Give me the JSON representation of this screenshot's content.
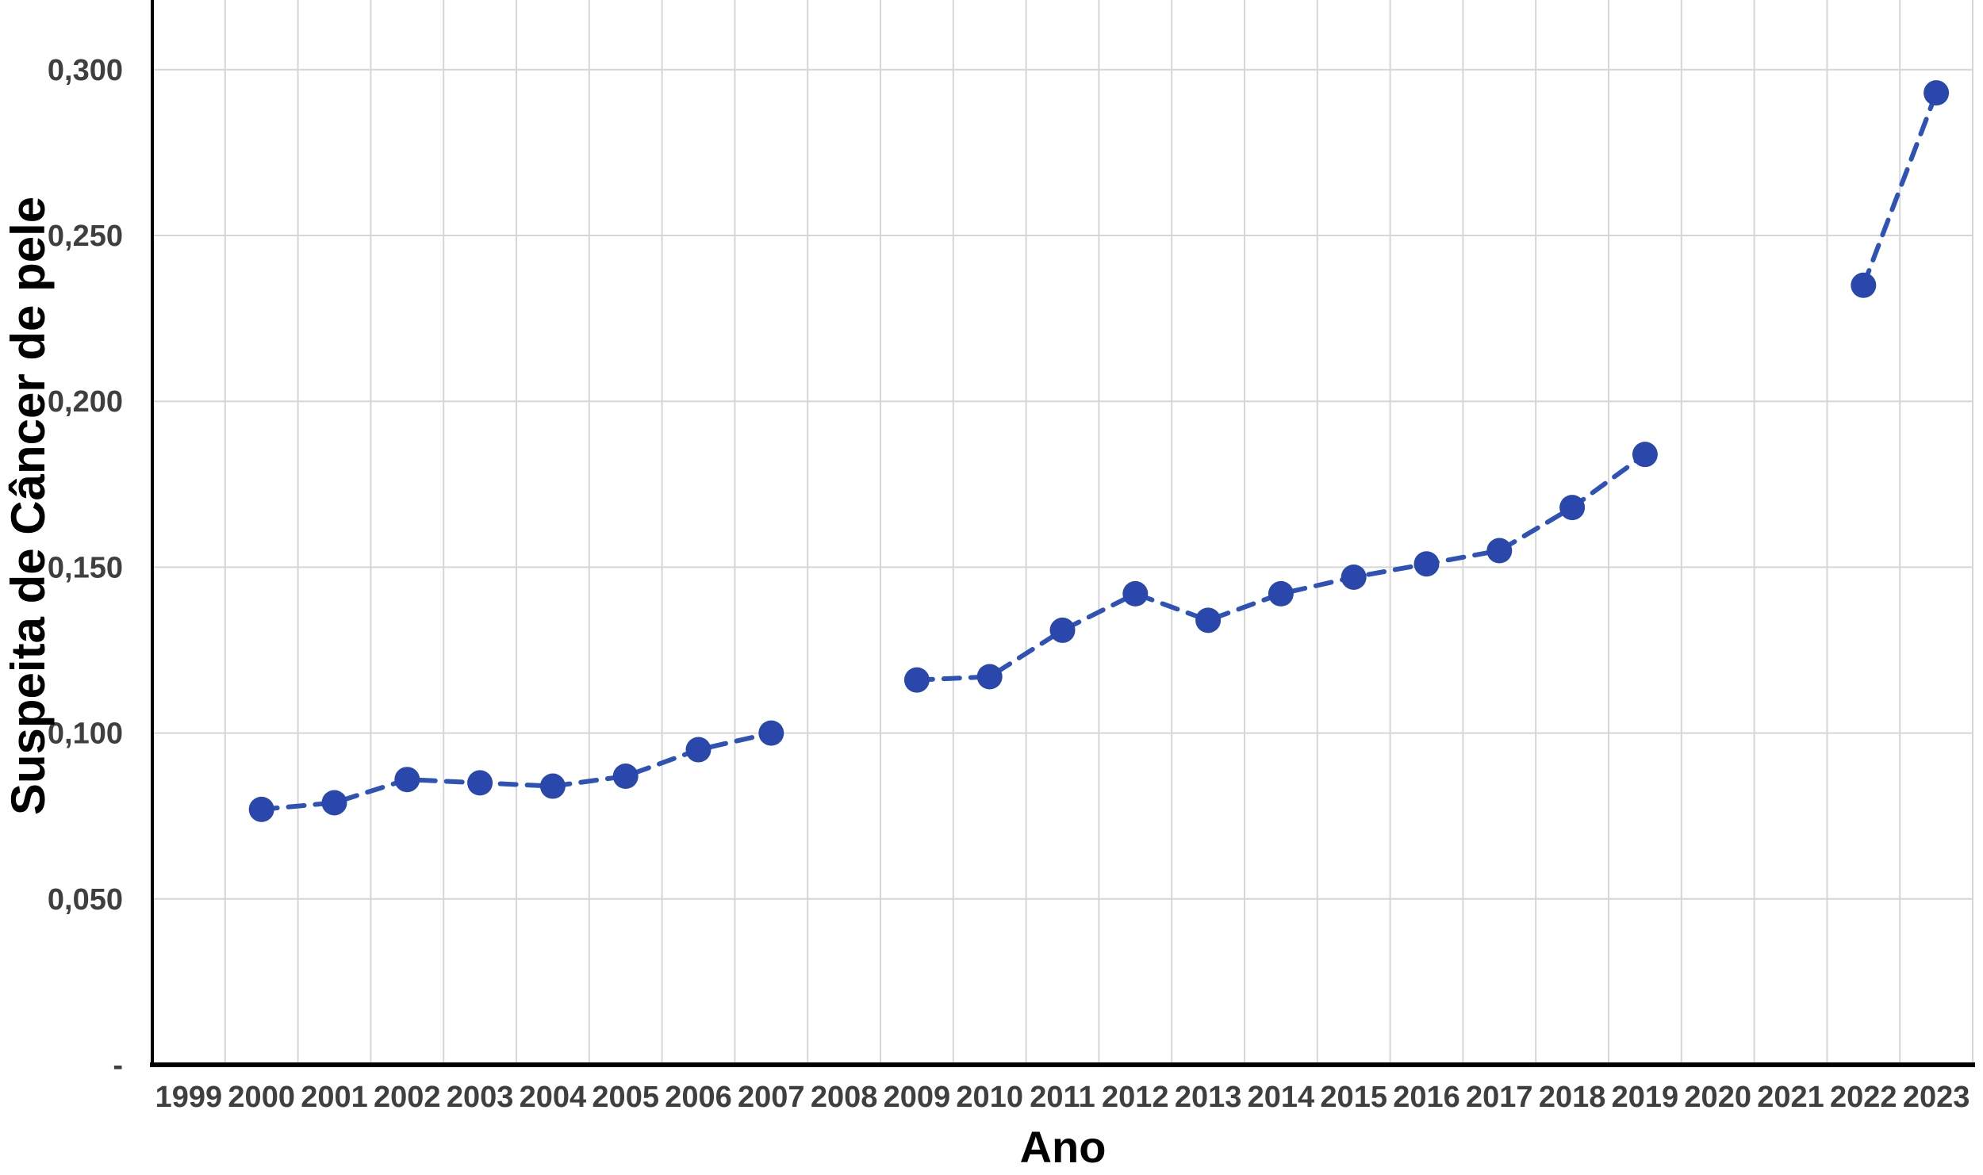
{
  "chart_data": {
    "type": "line",
    "title": "",
    "xlabel": "Ano",
    "ylabel": "Suspeita de Câncer de pele",
    "categories": [
      "1999",
      "2000",
      "2001",
      "2002",
      "2003",
      "2004",
      "2005",
      "2006",
      "2007",
      "2008",
      "2009",
      "2010",
      "2011",
      "2012",
      "2013",
      "2014",
      "2015",
      "2016",
      "2017",
      "2018",
      "2019",
      "2020",
      "2021",
      "2022",
      "2023"
    ],
    "series": [
      {
        "name": "Suspeita de Câncer de pele",
        "values": [
          null,
          0.077,
          0.079,
          0.086,
          0.085,
          0.084,
          0.087,
          0.095,
          0.1,
          null,
          0.116,
          0.117,
          0.131,
          0.142,
          0.134,
          0.142,
          0.147,
          0.151,
          0.155,
          0.168,
          0.184,
          null,
          null,
          0.235,
          0.293
        ]
      }
    ],
    "y_tick_labels": [
      "-",
      "0,050",
      "0,100",
      "0,150",
      "0,200",
      "0,250",
      "0,300"
    ],
    "y_tick_values": [
      0,
      0.05,
      0.1,
      0.15,
      0.2,
      0.25,
      0.3
    ],
    "ylim": [
      0,
      0.321
    ],
    "grid": true,
    "legend": "none",
    "line_style": "dashed",
    "marker": "circle",
    "decimal_separator": ",",
    "colors": {
      "line": "#2F52B7",
      "marker": "#2A48AC",
      "grid": "#D6D6D6",
      "axis": "#000000",
      "tick_text": "#3F3F3F",
      "background": "#FFFFFF"
    }
  }
}
